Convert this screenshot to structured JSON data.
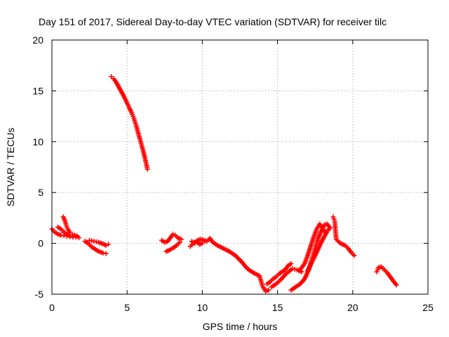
{
  "chart_data": {
    "type": "scatter",
    "title": "Day 151 of 2017, Sidereal Day-to-day VTEC variation (SDTVAR) for receiver tilc",
    "xlabel": "GPS time / hours",
    "ylabel": "SDTVAR / TECUs",
    "xlim": [
      0,
      25
    ],
    "ylim": [
      -5,
      20
    ],
    "xticks": [
      "0",
      "5",
      "10",
      "15",
      "20",
      "25"
    ],
    "yticks": [
      "-5",
      "0",
      "5",
      "10",
      "15",
      "20"
    ],
    "grid": true,
    "marker": "+",
    "color": "#ff0000",
    "series": [
      {
        "name": "seg1",
        "points": [
          [
            0.0,
            1.4
          ],
          [
            0.2,
            1.1
          ],
          [
            0.4,
            0.9
          ],
          [
            0.6,
            0.8
          ],
          [
            0.8,
            0.75
          ],
          [
            1.0,
            0.7
          ],
          [
            1.2,
            0.65
          ],
          [
            1.4,
            0.6
          ],
          [
            1.6,
            0.6
          ],
          [
            1.8,
            0.55
          ]
        ]
      },
      {
        "name": "seg1b",
        "points": [
          [
            0.4,
            1.6
          ],
          [
            0.6,
            1.4
          ],
          [
            0.8,
            1.1
          ],
          [
            1.0,
            0.9
          ],
          [
            1.2,
            0.7
          ]
        ]
      },
      {
        "name": "seg2",
        "points": [
          [
            0.75,
            2.6
          ],
          [
            0.85,
            2.3
          ],
          [
            0.95,
            1.8
          ],
          [
            1.05,
            1.4
          ],
          [
            1.2,
            1.1
          ],
          [
            1.35,
            0.9
          ],
          [
            1.5,
            0.8
          ],
          [
            1.7,
            0.7
          ]
        ]
      },
      {
        "name": "seg3",
        "points": [
          [
            2.2,
            0.2
          ],
          [
            2.4,
            0.0
          ],
          [
            2.6,
            -0.3
          ],
          [
            2.8,
            -0.5
          ],
          [
            3.0,
            -0.7
          ],
          [
            3.2,
            -0.85
          ],
          [
            3.4,
            -0.95
          ],
          [
            3.6,
            -1.0
          ]
        ]
      },
      {
        "name": "seg3b",
        "points": [
          [
            2.5,
            0.3
          ],
          [
            2.8,
            0.2
          ],
          [
            3.1,
            0.1
          ],
          [
            3.4,
            -0.05
          ],
          [
            3.6,
            -0.2
          ],
          [
            3.75,
            -0.1
          ]
        ]
      },
      {
        "name": "seg4",
        "points": [
          [
            3.95,
            16.4
          ],
          [
            4.1,
            16.2
          ],
          [
            4.25,
            15.9
          ],
          [
            4.4,
            15.5
          ],
          [
            4.55,
            15.1
          ],
          [
            4.7,
            14.7
          ],
          [
            4.85,
            14.25
          ],
          [
            5.0,
            13.8
          ],
          [
            5.15,
            13.3
          ],
          [
            5.3,
            12.85
          ],
          [
            5.45,
            12.3
          ],
          [
            5.6,
            11.6
          ],
          [
            5.75,
            10.8
          ],
          [
            5.9,
            10.0
          ],
          [
            6.05,
            9.2
          ],
          [
            6.2,
            8.3
          ],
          [
            6.35,
            7.3
          ]
        ]
      },
      {
        "name": "seg5",
        "points": [
          [
            7.3,
            0.3
          ],
          [
            7.5,
            0.1
          ],
          [
            7.7,
            0.2
          ],
          [
            7.9,
            0.6
          ],
          [
            8.05,
            0.9
          ],
          [
            8.2,
            0.8
          ],
          [
            8.4,
            0.5
          ],
          [
            8.6,
            0.4
          ]
        ]
      },
      {
        "name": "seg5b",
        "points": [
          [
            7.6,
            -0.8
          ],
          [
            7.9,
            -0.6
          ],
          [
            8.1,
            -0.4
          ],
          [
            8.3,
            -0.2
          ],
          [
            8.5,
            0.1
          ]
        ]
      },
      {
        "name": "seg6",
        "points": [
          [
            9.3,
            0.2
          ],
          [
            9.5,
            0.0
          ],
          [
            9.7,
            0.3
          ],
          [
            9.9,
            0.4
          ],
          [
            10.1,
            0.3
          ],
          [
            10.3,
            0.2
          ],
          [
            10.5,
            0.5
          ],
          [
            10.7,
            0.1
          ],
          [
            11.0,
            -0.2
          ],
          [
            11.4,
            -0.5
          ],
          [
            11.8,
            -0.8
          ],
          [
            12.2,
            -1.2
          ],
          [
            12.6,
            -1.8
          ],
          [
            13.0,
            -2.5
          ],
          [
            13.4,
            -2.9
          ],
          [
            13.8,
            -3.2
          ],
          [
            14.0,
            -4.2
          ],
          [
            14.2,
            -4.7
          ],
          [
            14.4,
            -4.6
          ]
        ]
      },
      {
        "name": "seg6b",
        "points": [
          [
            9.2,
            -0.3
          ],
          [
            9.4,
            0.0
          ],
          [
            9.6,
            0.2
          ],
          [
            9.8,
            -0.1
          ],
          [
            10.0,
            0.0
          ]
        ]
      },
      {
        "name": "seg7",
        "points": [
          [
            14.3,
            -4.0
          ],
          [
            14.5,
            -3.8
          ],
          [
            14.7,
            -3.5
          ],
          [
            14.9,
            -3.3
          ],
          [
            15.1,
            -3.0
          ],
          [
            15.3,
            -2.8
          ],
          [
            15.5,
            -2.6
          ],
          [
            15.7,
            -2.2
          ],
          [
            15.9,
            -2.0
          ]
        ]
      },
      {
        "name": "seg7b",
        "points": [
          [
            14.6,
            -4.3
          ],
          [
            14.9,
            -4.0
          ],
          [
            15.2,
            -3.6
          ],
          [
            15.5,
            -3.1
          ],
          [
            15.8,
            -2.7
          ],
          [
            16.0,
            -2.5
          ],
          [
            16.3,
            -2.6
          ],
          [
            16.6,
            -2.8
          ]
        ]
      },
      {
        "name": "seg8",
        "points": [
          [
            15.9,
            -4.6
          ],
          [
            16.2,
            -4.3
          ],
          [
            16.5,
            -4.0
          ],
          [
            16.8,
            -3.5
          ],
          [
            17.1,
            -2.5
          ],
          [
            17.3,
            -1.5
          ],
          [
            17.5,
            -0.5
          ],
          [
            17.7,
            0.5
          ],
          [
            17.9,
            1.2
          ],
          [
            18.1,
            1.8
          ],
          [
            18.3,
            1.9
          ],
          [
            18.5,
            1.5
          ]
        ]
      },
      {
        "name": "seg8b",
        "points": [
          [
            16.5,
            -2.6
          ],
          [
            16.8,
            -2.0
          ],
          [
            17.0,
            -1.2
          ],
          [
            17.2,
            -0.3
          ],
          [
            17.4,
            0.6
          ],
          [
            17.6,
            1.4
          ],
          [
            17.8,
            1.9
          ],
          [
            18.0,
            1.5
          ],
          [
            18.2,
            1.0
          ]
        ]
      },
      {
        "name": "seg8c",
        "points": [
          [
            17.0,
            -2.7
          ],
          [
            17.3,
            -1.8
          ],
          [
            17.6,
            -0.9
          ],
          [
            17.9,
            0.1
          ],
          [
            18.2,
            0.9
          ],
          [
            18.4,
            1.4
          ]
        ]
      },
      {
        "name": "seg9",
        "points": [
          [
            18.7,
            2.6
          ],
          [
            18.8,
            2.2
          ],
          [
            18.9,
            0.4
          ],
          [
            19.1,
            0.1
          ],
          [
            19.3,
            -0.1
          ],
          [
            19.5,
            -0.2
          ],
          [
            19.7,
            -0.5
          ],
          [
            19.9,
            -0.9
          ],
          [
            20.1,
            -1.2
          ]
        ]
      },
      {
        "name": "seg10",
        "points": [
          [
            21.6,
            -2.8
          ],
          [
            21.7,
            -2.4
          ],
          [
            21.9,
            -2.3
          ],
          [
            22.1,
            -2.6
          ],
          [
            22.3,
            -2.9
          ],
          [
            22.5,
            -3.3
          ],
          [
            22.7,
            -3.7
          ],
          [
            22.9,
            -4.1
          ]
        ]
      }
    ]
  }
}
